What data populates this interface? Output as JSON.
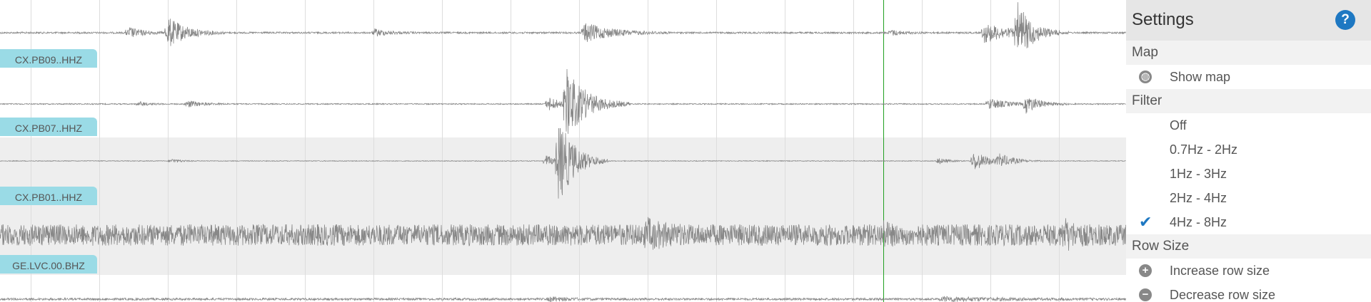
{
  "channels": [
    {
      "label": "CX.PB09..HHZ"
    },
    {
      "label": "CX.PB07..HHZ"
    },
    {
      "label": "CX.PB01..HHZ"
    },
    {
      "label": "GE.LVC.00.BHZ"
    }
  ],
  "settings": {
    "title": "Settings",
    "help_icon": "question-circle-icon",
    "sections": {
      "map": {
        "heading": "Map",
        "items": [
          {
            "label": "Show map",
            "icon": "globe-icon"
          }
        ]
      },
      "filter": {
        "heading": "Filter",
        "items": [
          {
            "label": "Off",
            "checked": false
          },
          {
            "label": "0.7Hz - 2Hz",
            "checked": false
          },
          {
            "label": "1Hz - 3Hz",
            "checked": false
          },
          {
            "label": "2Hz - 4Hz",
            "checked": false
          },
          {
            "label": "4Hz - 8Hz",
            "checked": true
          }
        ]
      },
      "row_size": {
        "heading": "Row Size",
        "items": [
          {
            "label": "Increase row size",
            "icon": "plus-circle-icon"
          },
          {
            "label": "Decrease row size",
            "icon": "minus-circle-icon"
          }
        ]
      }
    }
  },
  "colors": {
    "label_bg": "#9adbe6",
    "trace": "#888888",
    "cursor": "#22a022",
    "accent": "#1e78c2"
  }
}
